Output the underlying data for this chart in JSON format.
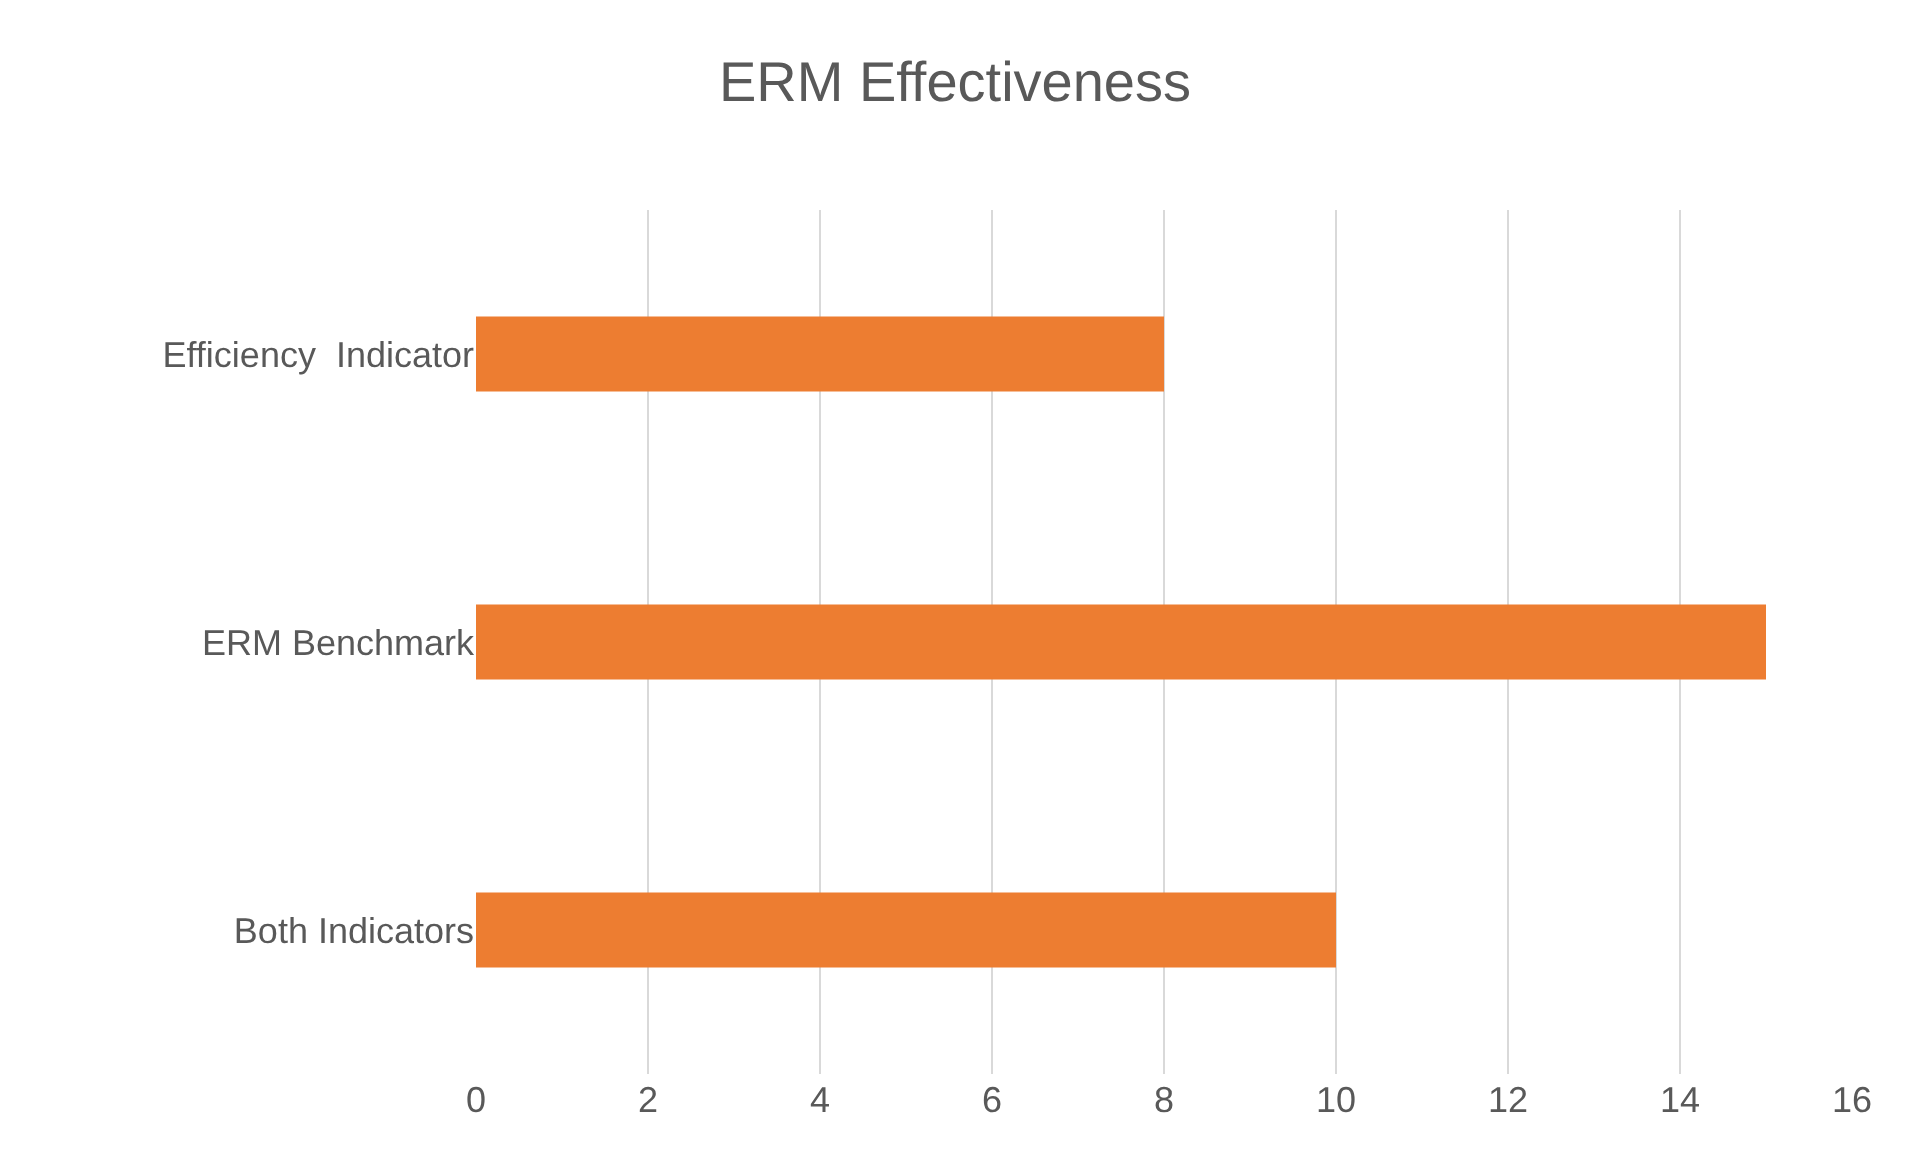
{
  "chart_data": {
    "type": "bar",
    "title": "ERM Effectiveness",
    "orientation": "horizontal",
    "categories": [
      "Efficiency  Indicator",
      "ERM Benchmark",
      "Both Indicators"
    ],
    "values": [
      8,
      15,
      10
    ],
    "color": "#ed7d31",
    "xlim": [
      0,
      16
    ],
    "xticks": [
      0,
      2,
      4,
      6,
      8,
      10,
      12,
      14,
      16
    ],
    "grid": "x"
  }
}
